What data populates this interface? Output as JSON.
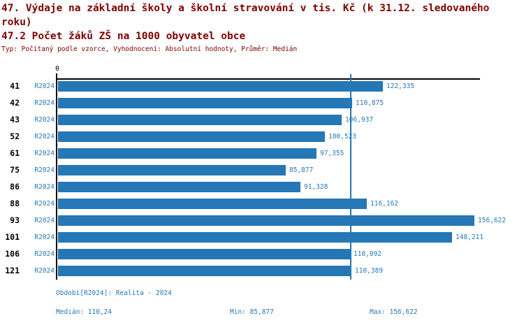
{
  "header": {
    "title_line1": "47. Výdaje na základní školy a školní stravování v tis. Kč (k 31.12. sledovaného roku)",
    "title_line2": "47.2 Počet žáků ZŠ na 1000 obyvatel obce",
    "meta": "Typ: Počítaný podle vzorce, Vyhodnocení: Absolutní hodnoty, Průměr: Medián"
  },
  "chart_data": {
    "type": "bar",
    "orientation": "horizontal",
    "axis_origin_label": "0",
    "series_name": "R2024",
    "categories": [
      "41",
      "42",
      "43",
      "52",
      "61",
      "75",
      "86",
      "88",
      "93",
      "101",
      "106",
      "121"
    ],
    "values": [
      122.335,
      110.875,
      106.937,
      100.523,
      97.355,
      85.877,
      91.328,
      116.162,
      156.622,
      148.211,
      110.092,
      110.389
    ],
    "value_labels": [
      "122,335",
      "110,875",
      "106,937",
      "100,523",
      "97,355",
      "85,877",
      "91,328",
      "116,162",
      "156,622",
      "148,211",
      "110,092",
      "110,389"
    ],
    "median_value": 110.24,
    "xlim": [
      0,
      158.8
    ],
    "grid": false,
    "legend_position": "none",
    "colors": {
      "bar": "#2577b6",
      "median_line": "#2577b6",
      "axis": "#000000",
      "header_text": "#7d0000",
      "stat_text": "#2577b6",
      "category_text": "#000000"
    }
  },
  "footer": {
    "period": "Období[R2024]: Realita - 2024",
    "median": "Medián: 110,24",
    "min": "Min: 85,877",
    "max": "Max: 156,622"
  }
}
